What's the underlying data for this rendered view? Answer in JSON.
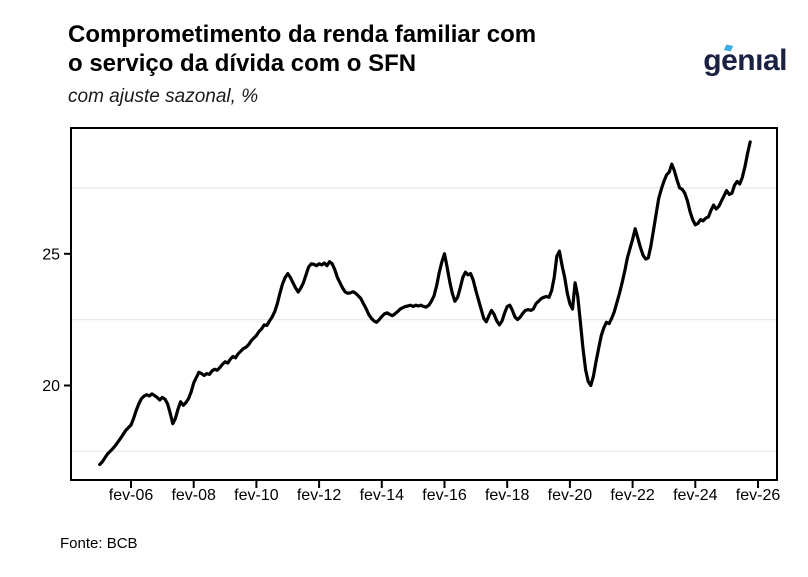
{
  "header": {
    "title_line1": "Comprometimento da renda familiar com",
    "title_line2": "o serviço da dívida com o SFN",
    "subtitle": "com ajuste sazonal, %"
  },
  "logo": {
    "text": "genıal"
  },
  "footer": {
    "source": "Fonte: BCB"
  },
  "colors": {
    "background": "#ffffff",
    "line": "#000000",
    "frame": "#000000",
    "grid": "#e9e9e9",
    "text": "#000000",
    "logo_navy": "#1b2142",
    "logo_blue": "#3aaee4"
  },
  "chart_data": {
    "type": "line",
    "title": "Comprometimento da renda familiar com o serviço da dívida com o SFN",
    "subtitle": "com ajuste sazonal, %",
    "source": "Fonte: BCB",
    "unit": "%",
    "frequency": "monthly",
    "start": "2005-02",
    "end": "2025-11",
    "xlabel": "",
    "ylabel": "",
    "ylim": [
      16.4,
      29.9
    ],
    "x_tick_labels": [
      "fev-06",
      "fev-08",
      "fev-10",
      "fev-12",
      "fev-14",
      "fev-16",
      "fev-18",
      "fev-20",
      "fev-22",
      "fev-24",
      "fev-26"
    ],
    "y_axis": {
      "labeled_breaks": [
        25,
        20
      ],
      "minor_gridlines": [
        27.5,
        22.5,
        17.5
      ]
    },
    "legend": "none",
    "series": [
      {
        "name": "Comprometimento da renda familiar com o serviço da dívida com o SFN (com ajuste sazonal, %)",
        "values": [
          17.0,
          17.1,
          17.25,
          17.4,
          17.5,
          17.6,
          17.72,
          17.85,
          18.0,
          18.15,
          18.3,
          18.4,
          18.5,
          18.75,
          19.05,
          19.3,
          19.5,
          19.6,
          19.65,
          19.6,
          19.68,
          19.62,
          19.55,
          19.45,
          19.55,
          19.48,
          19.3,
          18.95,
          18.55,
          18.75,
          19.1,
          19.38,
          19.25,
          19.35,
          19.5,
          19.75,
          20.1,
          20.3,
          20.5,
          20.45,
          20.38,
          20.45,
          20.42,
          20.55,
          20.62,
          20.58,
          20.68,
          20.8,
          20.9,
          20.85,
          21.0,
          21.1,
          21.05,
          21.2,
          21.3,
          21.4,
          21.45,
          21.55,
          21.7,
          21.8,
          21.9,
          22.05,
          22.15,
          22.3,
          22.28,
          22.45,
          22.6,
          22.8,
          23.1,
          23.5,
          23.85,
          24.1,
          24.25,
          24.1,
          23.9,
          23.7,
          23.55,
          23.7,
          23.9,
          24.2,
          24.5,
          24.62,
          24.6,
          24.55,
          24.62,
          24.58,
          24.65,
          24.55,
          24.7,
          24.62,
          24.4,
          24.1,
          23.9,
          23.7,
          23.55,
          23.5,
          23.52,
          23.56,
          23.5,
          23.4,
          23.3,
          23.1,
          22.92,
          22.7,
          22.55,
          22.45,
          22.4,
          22.5,
          22.62,
          22.72,
          22.76,
          22.7,
          22.65,
          22.72,
          22.8,
          22.9,
          22.95,
          23.0,
          23.02,
          23.05,
          23.0,
          23.05,
          23.02,
          23.05,
          23.0,
          22.98,
          23.05,
          23.2,
          23.4,
          23.8,
          24.3,
          24.7,
          25.0,
          24.5,
          23.95,
          23.5,
          23.2,
          23.35,
          23.7,
          24.1,
          24.3,
          24.2,
          24.25,
          24.0,
          23.6,
          23.25,
          22.9,
          22.55,
          22.42,
          22.65,
          22.85,
          22.7,
          22.45,
          22.3,
          22.45,
          22.75,
          23.0,
          23.05,
          22.85,
          22.6,
          22.5,
          22.6,
          22.75,
          22.85,
          22.88,
          22.85,
          22.9,
          23.1,
          23.2,
          23.3,
          23.35,
          23.38,
          23.35,
          23.6,
          24.1,
          24.9,
          25.1,
          24.55,
          24.1,
          23.5,
          23.1,
          22.9,
          23.9,
          23.4,
          22.4,
          21.4,
          20.6,
          20.15,
          20.0,
          20.35,
          20.9,
          21.4,
          21.9,
          22.2,
          22.4,
          22.35,
          22.55,
          22.8,
          23.15,
          23.5,
          23.9,
          24.35,
          24.85,
          25.2,
          25.55,
          25.95,
          25.6,
          25.25,
          24.95,
          24.8,
          24.85,
          25.3,
          25.9,
          26.5,
          27.1,
          27.45,
          27.75,
          28.0,
          28.1,
          28.4,
          28.15,
          27.8,
          27.5,
          27.45,
          27.3,
          27.0,
          26.6,
          26.3,
          26.1,
          26.15,
          26.3,
          26.25,
          26.35,
          26.4,
          26.65,
          26.85,
          26.7,
          26.8,
          27.0,
          27.2,
          27.4,
          27.25,
          27.3,
          27.6,
          27.75,
          27.65,
          27.9,
          28.3,
          28.8,
          29.25
        ]
      }
    ]
  }
}
